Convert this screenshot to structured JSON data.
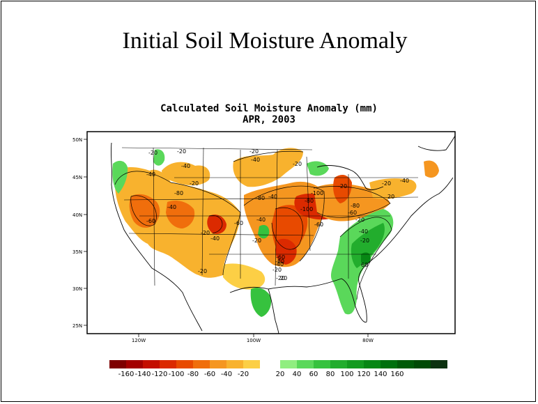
{
  "slide": {
    "title": "Initial Soil Moisture Anomaly"
  },
  "map": {
    "title": "Calculated Soil Moisture Anomaly (mm)",
    "date": "APR, 2003",
    "lat_ticks": [
      "50N",
      "45N",
      "40N",
      "35N",
      "30N",
      "25N"
    ],
    "lon_ticks": [
      "120W",
      "100W",
      "80W"
    ],
    "contour_labels": [
      "-20",
      "-20",
      "-40",
      "-40",
      "-20",
      "-20",
      "-40",
      "-80",
      "-40",
      "-20",
      "-60",
      "-40",
      "-20",
      "-60",
      "-80",
      "-100",
      "-80",
      "-100",
      "-40",
      "-60",
      "-40",
      "-20",
      "-20",
      "-20",
      "-20",
      "-20",
      "-60",
      "-20",
      "-40",
      "-80",
      "-80",
      "-60",
      "-40",
      "-20",
      "-20",
      "-40",
      "20",
      "20",
      "60"
    ]
  },
  "colorbar": {
    "neg_colors": [
      "#7e0000",
      "#a30000",
      "#c40e00",
      "#db2a00",
      "#e84a00",
      "#f06e0c",
      "#f59620",
      "#f8b22e",
      "#fccf45"
    ],
    "pos_colors": [
      "#90ee80",
      "#5ad85a",
      "#36c23e",
      "#22ad2d",
      "#139a1f",
      "#078714",
      "#00700e",
      "#005a08",
      "#004a05",
      "#0c3210"
    ],
    "labels": [
      "-160",
      "-140",
      "-120",
      "-100",
      "-80",
      "-60",
      "-40",
      "-20",
      "20",
      "40",
      "60",
      "80",
      "100",
      "120",
      "140",
      "160"
    ]
  }
}
